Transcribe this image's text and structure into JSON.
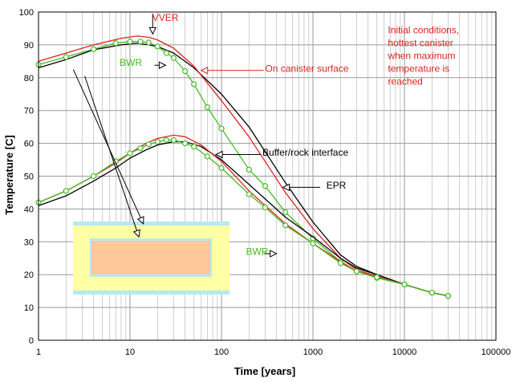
{
  "chart_data": {
    "type": "line",
    "xscale": "log",
    "xlim": [
      1,
      100000
    ],
    "ylim": [
      0,
      100
    ],
    "grid": true,
    "xlabel": "Time [years]",
    "ylabel": "Temperature [C]",
    "xticks": [
      1,
      10,
      100,
      1000,
      10000,
      100000
    ],
    "xtick_labels": [
      "1",
      "10",
      "100",
      "1000",
      "10000",
      "100000"
    ],
    "yticks": [
      0,
      10,
      20,
      30,
      40,
      50,
      60,
      70,
      80,
      90,
      100
    ],
    "yticks_labels": [
      "0",
      "10",
      "20",
      "30",
      "40",
      "50",
      "60",
      "70",
      "80",
      "90",
      "100"
    ],
    "series": [
      {
        "group": "canister",
        "color": "#000000",
        "marker": "none",
        "x": [
          1,
          2,
          4,
          8,
          12,
          16,
          20,
          30,
          50,
          100,
          200,
          500,
          1000,
          2000,
          3000,
          5000,
          10000,
          20000,
          30000
        ],
        "y": [
          83,
          85.5,
          88.5,
          90,
          90.5,
          90,
          89.5,
          87.5,
          83,
          75,
          65,
          48,
          36,
          26,
          22.5,
          20,
          17,
          14.5,
          13.5
        ]
      },
      {
        "group": "canister",
        "color": "#dd2222",
        "marker": "none",
        "x": [
          1,
          2,
          4,
          8,
          12,
          16,
          20,
          30,
          50,
          100,
          200,
          500,
          1000,
          2000,
          3000,
          5000,
          10000,
          20000,
          30000
        ],
        "y": [
          85,
          87.5,
          90,
          92,
          92.7,
          92.3,
          91.5,
          89,
          83.5,
          73,
          62,
          45,
          34,
          25,
          21.5,
          19.5,
          17,
          14.5,
          13.5
        ]
      },
      {
        "group": "canister",
        "color": "#44bb22",
        "marker": "circle",
        "x": [
          1,
          2,
          4,
          7,
          10,
          13,
          16,
          20,
          25,
          30,
          40,
          50,
          70,
          100,
          200,
          300,
          500,
          1000,
          2000,
          3000,
          5000,
          10000,
          20000,
          30000
        ],
        "y": [
          84,
          86.3,
          88.7,
          90.5,
          91,
          91,
          90.7,
          89.5,
          87.5,
          86,
          82,
          78,
          71,
          64.5,
          52,
          47,
          39,
          31,
          24,
          21,
          19,
          17,
          14.5,
          13.5
        ]
      },
      {
        "group": "buffer",
        "color": "#000000",
        "marker": "none",
        "x": [
          1,
          2,
          4,
          7,
          10,
          15,
          20,
          30,
          40,
          60,
          100,
          200,
          500,
          1000,
          2000,
          3000,
          5000,
          10000,
          20000,
          30000
        ],
        "y": [
          41,
          44,
          48.5,
          52.5,
          55.5,
          58,
          59.5,
          60.5,
          60.5,
          59,
          55,
          47.5,
          37.5,
          31.5,
          25,
          22,
          20,
          17,
          14.5,
          13.5
        ]
      },
      {
        "group": "buffer",
        "color": "#dd2222",
        "marker": "none",
        "x": [
          1,
          2,
          4,
          7,
          10,
          15,
          20,
          30,
          40,
          60,
          100,
          200,
          500,
          1000,
          2000,
          3000,
          5000,
          10000,
          20000,
          30000
        ],
        "y": [
          42,
          45.5,
          50,
          54,
          57,
          60,
          61.5,
          62.5,
          62,
          59.5,
          54.5,
          45.5,
          35.5,
          29.5,
          24,
          21,
          19.5,
          17,
          14.5,
          13.5
        ]
      },
      {
        "group": "buffer",
        "color": "#44bb22",
        "marker": "circle",
        "x": [
          1,
          2,
          4,
          7,
          10,
          13,
          16,
          20,
          25,
          30,
          40,
          50,
          70,
          100,
          200,
          300,
          500,
          1000,
          2000,
          3000,
          5000,
          10000,
          20000,
          30000
        ],
        "y": [
          42,
          45.5,
          50,
          54.5,
          57,
          58.5,
          59.7,
          60.5,
          61,
          61,
          60,
          59,
          56,
          52.5,
          44.5,
          40.5,
          35,
          29.5,
          23.5,
          21,
          19.2,
          17,
          14.5,
          13.5
        ]
      }
    ],
    "annotations": [
      {
        "text": "VVER",
        "color": "#dd2222",
        "x": 17.5,
        "y": 97.3,
        "anchor": "start"
      },
      {
        "text": "BWR",
        "color": "#44bb22",
        "x": 7.7,
        "y": 83.6,
        "anchor": "start"
      },
      {
        "text": "On canister surface",
        "color": "#dd2222",
        "x": 300,
        "y": 81.8,
        "anchor": "start"
      },
      {
        "text": "Buffer/rock interface",
        "color": "#000000",
        "x": 280,
        "y": 56.2,
        "anchor": "start"
      },
      {
        "text": "EPR",
        "color": "#000000",
        "x": 1400,
        "y": 46.2,
        "anchor": "start"
      },
      {
        "text": "BWR",
        "color": "#44bb22",
        "x": 185,
        "y": 26.0,
        "anchor": "start"
      },
      {
        "text": "Initial conditions,",
        "color": "#dd2222",
        "x": 6600,
        "y": 93.5,
        "anchor": "start"
      },
      {
        "text": "hottest canister",
        "color": "#dd2222",
        "x": 6600,
        "y": 89.6,
        "anchor": "start"
      },
      {
        "text": "when maximum",
        "color": "#dd2222",
        "x": 6600,
        "y": 85.7,
        "anchor": "start"
      },
      {
        "text": "temperature is",
        "color": "#dd2222",
        "x": 6600,
        "y": 81.8,
        "anchor": "start"
      },
      {
        "text": "reached",
        "color": "#dd2222",
        "x": 6600,
        "y": 77.9,
        "anchor": "start"
      }
    ],
    "arrows": [
      {
        "from": [
          17.7,
          99.5
        ],
        "to": [
          17.7,
          93.3
        ],
        "color": "#000000"
      },
      {
        "from": [
          18.5,
          83.8
        ],
        "to": [
          24.5,
          83.8
        ],
        "color": "#000000"
      },
      {
        "from": [
          290,
          82.2
        ],
        "to": [
          60,
          82.2
        ],
        "color": "#dd2222"
      },
      {
        "from": [
          270,
          56.6
        ],
        "to": [
          87,
          56.6
        ],
        "color": "#000000"
      },
      {
        "from": [
          1200,
          46.6
        ],
        "to": [
          470,
          46.6
        ],
        "color": "#000000"
      },
      {
        "from": [
          290,
          26.4
        ],
        "to": [
          400,
          26.4
        ],
        "color": "#000000"
      },
      {
        "from": [
          2.4,
          82.5
        ],
        "to": [
          14,
          35.5
        ],
        "color": "#000000"
      },
      {
        "from": [
          3.2,
          80.5
        ],
        "to": [
          12.5,
          31.5
        ],
        "color": "#000000"
      }
    ]
  }
}
